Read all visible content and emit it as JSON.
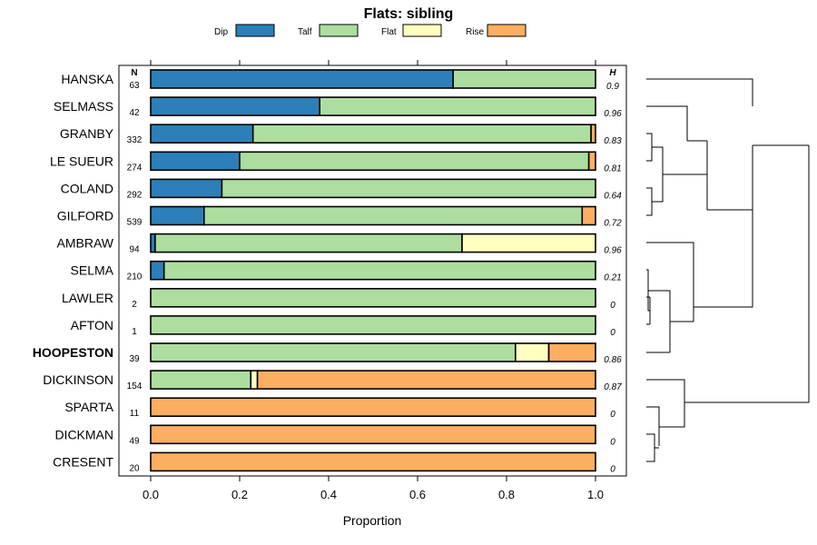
{
  "chart_data": {
    "type": "bar",
    "orientation": "horizontal",
    "stacked": true,
    "title": "Flats: sibling",
    "xlabel": "Proportion",
    "ylabel": "",
    "xlim": [
      0,
      1
    ],
    "x_ticks": [
      "0.0",
      "0.2",
      "0.4",
      "0.6",
      "0.8",
      "1.0"
    ],
    "n_header": "N",
    "h_header": "H",
    "legend": {
      "placement": "top",
      "entries": [
        {
          "name": "Dip",
          "color": "#2c7fb8"
        },
        {
          "name": "Talf",
          "color": "#addd9f"
        },
        {
          "name": "Flat",
          "color": "#ffffbf"
        },
        {
          "name": "Rise",
          "color": "#fdae61"
        }
      ]
    },
    "highlighted_category": "HOOPESTON",
    "categories": [
      "HANSKA",
      "SELMASS",
      "GRANBY",
      "LE SUEUR",
      "COLAND",
      "GILFORD",
      "AMBRAW",
      "SELMA",
      "LAWLER",
      "AFTON",
      "HOOPESTON",
      "DICKINSON",
      "SPARTA",
      "DICKMAN",
      "CRESENT"
    ],
    "n": [
      "63",
      "42",
      "332",
      "274",
      "292",
      "539",
      "94",
      "210",
      "2",
      "1",
      "39",
      "154",
      "11",
      "49",
      "20"
    ],
    "h": [
      "0.9",
      "0.96",
      "0.83",
      "0.81",
      "0.64",
      "0.72",
      "0.96",
      "0.21",
      "0",
      "0",
      "0.86",
      "0.87",
      "0",
      "0",
      "0"
    ],
    "series": [
      {
        "name": "Dip",
        "color": "#2c7fb8",
        "values": [
          0.68,
          0.38,
          0.23,
          0.2,
          0.16,
          0.12,
          0.01,
          0.03,
          0,
          0,
          0,
          0,
          0,
          0,
          0
        ]
      },
      {
        "name": "Talf",
        "color": "#addd9f",
        "values": [
          0.32,
          0.62,
          0.76,
          0.785,
          0.84,
          0.85,
          0.69,
          0.97,
          1,
          1,
          0.82,
          0.225,
          0,
          0,
          0
        ]
      },
      {
        "name": "Flat",
        "color": "#ffffbf",
        "values": [
          0,
          0,
          0,
          0,
          0,
          0,
          0.3,
          0,
          0,
          0,
          0.075,
          0.015,
          0,
          0,
          0
        ]
      },
      {
        "name": "Rise",
        "color": "#fdae61",
        "values": [
          0,
          0,
          0.01,
          0.015,
          0,
          0.03,
          0,
          0,
          0,
          0,
          0.105,
          0.76,
          1,
          1,
          1
        ]
      }
    ],
    "dendrogram": {
      "description": "hierarchical clustering of the row categories",
      "links": [
        {
          "left": "COLAND",
          "right": "GILFORD",
          "height": 0.06
        },
        {
          "left": "GRANBY",
          "right": "LE SUEUR",
          "height": 0.06
        },
        {
          "left": "merge:GRANBY+LE SUEUR",
          "right": "merge:COLAND+GILFORD",
          "height": 0.2
        },
        {
          "left": "SELMASS",
          "right": "merge:GRANBY..GILFORD",
          "height": 0.45
        },
        {
          "left": "HANSKA",
          "right": "merge:SELMASS..GILFORD",
          "height": 0.6
        },
        {
          "left": "LAWLER",
          "right": "AFTON",
          "height": 0.02
        },
        {
          "left": "SELMA",
          "right": "merge:LAWLER+AFTON",
          "height": 0.04
        },
        {
          "left": "merge:SELMA+LAWLER+AFTON",
          "right": "HOOPESTON",
          "height": 0.2
        },
        {
          "left": "AMBRAW",
          "right": "merge:SELMA..HOOPESTON",
          "height": 0.4
        },
        {
          "left": "merge:HANSKA..GILFORD",
          "right": "merge:AMBRAW..HOOPESTON",
          "height": 0.8
        },
        {
          "left": "DICKMAN",
          "right": "CRESENT",
          "height": 0.03
        },
        {
          "left": "SPARTA",
          "right": "merge:DICKMAN+CRESENT",
          "height": 0.1
        },
        {
          "left": "DICKINSON",
          "right": "merge:SPARTA+DICKMAN+CRESENT",
          "height": 0.3
        },
        {
          "left": "merge:HANSKA..HOOPESTON",
          "right": "merge:DICKINSON..CRESENT",
          "height": 1.0
        }
      ]
    }
  }
}
